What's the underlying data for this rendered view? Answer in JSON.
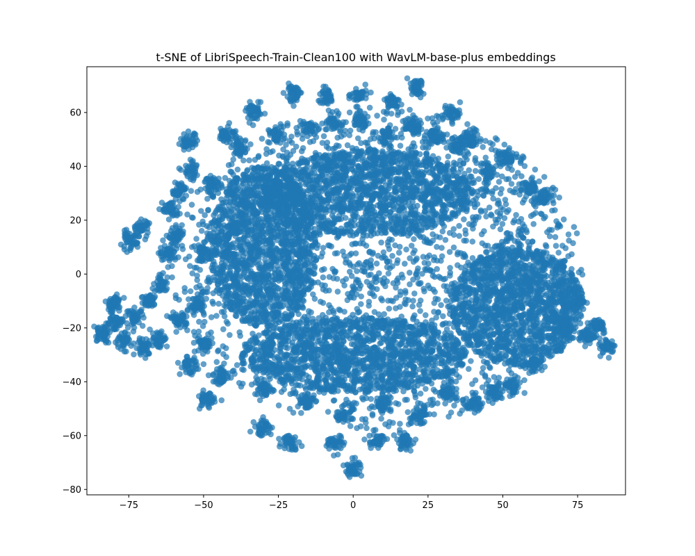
{
  "chart_data": {
    "type": "scatter",
    "title": "t-SNE of LibriSpeech-Train-Clean100 with WavLM-base-plus embeddings",
    "xlabel": "",
    "ylabel": "",
    "xlim": [
      -89,
      91
    ],
    "ylim": [
      -82,
      77
    ],
    "xticks": [
      -75,
      -50,
      -25,
      0,
      25,
      50,
      75
    ],
    "yticks": [
      -80,
      -60,
      -40,
      -20,
      0,
      20,
      40,
      60
    ],
    "xtick_labels": [
      "−75",
      "−50",
      "−25",
      "0",
      "25",
      "50",
      "75"
    ],
    "ytick_labels": [
      "−80",
      "−60",
      "−40",
      "−20",
      "0",
      "20",
      "40",
      "60"
    ],
    "grid": false,
    "legend": "none",
    "point_color": "#1f77b4",
    "point_alpha": 0.7,
    "dense_region": {
      "description_blobs": [
        {
          "cx": 8,
          "cy": 5,
          "rx": 52,
          "ry": 42
        },
        {
          "cx": 55,
          "cy": -12,
          "rx": 22,
          "ry": 22
        },
        {
          "cx": -30,
          "cy": 10,
          "rx": 18,
          "ry": 30
        },
        {
          "cx": 5,
          "cy": 30,
          "rx": 35,
          "ry": 16
        },
        {
          "cx": 0,
          "cy": -30,
          "rx": 38,
          "ry": 14
        }
      ]
    },
    "clusters": [
      {
        "x": -84,
        "y": -22
      },
      {
        "x": -80,
        "y": -18
      },
      {
        "x": -80,
        "y": -11
      },
      {
        "x": -77,
        "y": -25
      },
      {
        "x": -75,
        "y": 12
      },
      {
        "x": -71,
        "y": 17
      },
      {
        "x": -73,
        "y": -16
      },
      {
        "x": -70,
        "y": -27
      },
      {
        "x": -68,
        "y": -10
      },
      {
        "x": -65,
        "y": -24
      },
      {
        "x": -62,
        "y": 8
      },
      {
        "x": -64,
        "y": -4
      },
      {
        "x": -61,
        "y": 24
      },
      {
        "x": -59,
        "y": 14
      },
      {
        "x": -58,
        "y": -17
      },
      {
        "x": -58,
        "y": 31
      },
      {
        "x": -55,
        "y": 49
      },
      {
        "x": -55,
        "y": -34
      },
      {
        "x": -54,
        "y": 38
      },
      {
        "x": -52,
        "y": -12
      },
      {
        "x": -50,
        "y": -26
      },
      {
        "x": -49,
        "y": -47
      },
      {
        "x": -50,
        "y": 8
      },
      {
        "x": -47,
        "y": 33
      },
      {
        "x": -44,
        "y": -38
      },
      {
        "x": -42,
        "y": 52
      },
      {
        "x": -38,
        "y": 47
      },
      {
        "x": -33,
        "y": 60
      },
      {
        "x": -30,
        "y": -43
      },
      {
        "x": -30,
        "y": -57
      },
      {
        "x": -26,
        "y": 52
      },
      {
        "x": -20,
        "y": 67
      },
      {
        "x": -21,
        "y": -62
      },
      {
        "x": -16,
        "y": -47
      },
      {
        "x": -15,
        "y": 54
      },
      {
        "x": -9,
        "y": 66
      },
      {
        "x": -6,
        "y": -63
      },
      {
        "x": -6,
        "y": 56
      },
      {
        "x": -3,
        "y": -52
      },
      {
        "x": 0,
        "y": -72
      },
      {
        "x": 2,
        "y": 66
      },
      {
        "x": 2,
        "y": 57
      },
      {
        "x": 8,
        "y": -62
      },
      {
        "x": 10,
        "y": -48
      },
      {
        "x": 13,
        "y": 64
      },
      {
        "x": 11,
        "y": 51
      },
      {
        "x": 17,
        "y": -62
      },
      {
        "x": 21,
        "y": 69
      },
      {
        "x": 20,
        "y": 55
      },
      {
        "x": 22,
        "y": -52
      },
      {
        "x": 27,
        "y": 51
      },
      {
        "x": 32,
        "y": -44
      },
      {
        "x": 33,
        "y": 60
      },
      {
        "x": 35,
        "y": 48
      },
      {
        "x": 40,
        "y": -48
      },
      {
        "x": 40,
        "y": 50
      },
      {
        "x": 45,
        "y": 38
      },
      {
        "x": 47,
        "y": -44
      },
      {
        "x": 51,
        "y": 43
      },
      {
        "x": 53,
        "y": -42
      },
      {
        "x": 59,
        "y": 32
      },
      {
        "x": 60,
        "y": -34
      },
      {
        "x": 63,
        "y": 28
      },
      {
        "x": 70,
        "y": -20
      },
      {
        "x": 75,
        "y": -10
      },
      {
        "x": 78,
        "y": -23
      },
      {
        "x": 82,
        "y": -19
      },
      {
        "x": 85,
        "y": -27
      }
    ]
  }
}
